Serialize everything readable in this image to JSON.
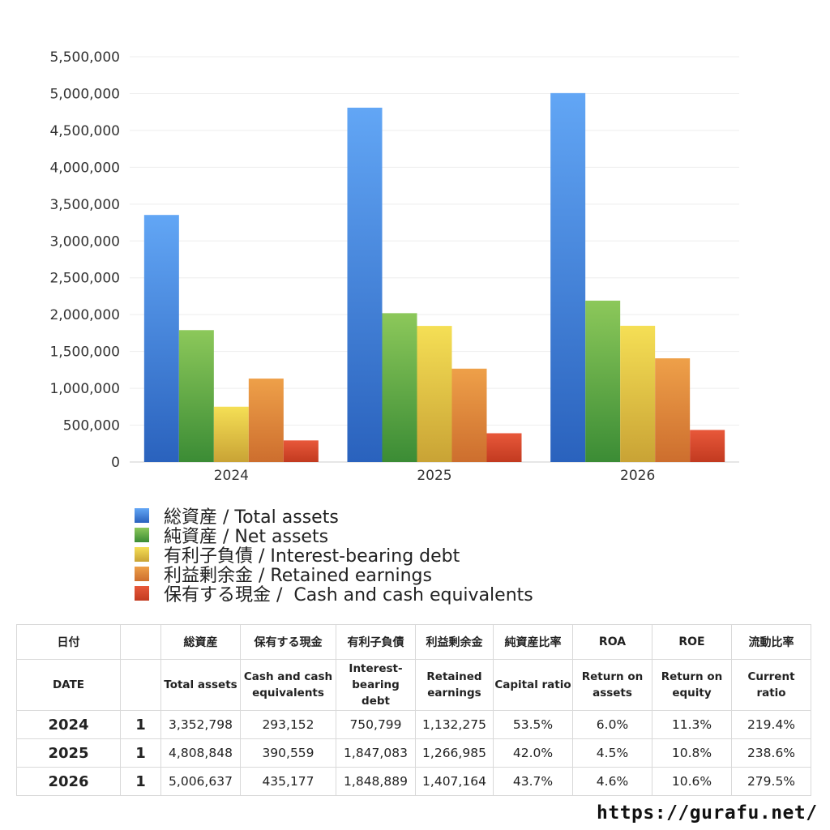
{
  "chart_data": {
    "type": "bar",
    "categories": [
      "2024",
      "2025",
      "2026"
    ],
    "ylim": [
      0,
      5500000
    ],
    "yticks": [
      0,
      500000,
      1000000,
      1500000,
      2000000,
      2500000,
      3000000,
      3500000,
      4000000,
      4500000,
      5000000,
      5500000
    ],
    "ytick_labels": [
      "0",
      "500,000",
      "1,000,000",
      "1,500,000",
      "2,000,000",
      "2,500,000",
      "3,000,000",
      "3,500,000",
      "4,000,000",
      "4,500,000",
      "5,000,000",
      "5,500,000"
    ],
    "grid": true,
    "legend_position": "bottom",
    "series": [
      {
        "name": "総資産 / Total assets",
        "values": [
          3352798,
          4808848,
          5006637
        ],
        "color_top": "#62a6f5",
        "color_bottom": "#2a62bd"
      },
      {
        "name": "純資産 / Net assets",
        "values": [
          1790000,
          2020000,
          2190000
        ],
        "color_top": "#8cc85a",
        "color_bottom": "#3b8c35"
      },
      {
        "name": "有利子負債 / Interest-bearing debt",
        "values": [
          750799,
          1847083,
          1848889
        ],
        "color_top": "#f5df55",
        "color_bottom": "#c9a335"
      },
      {
        "name": "利益剰余金 / Retained earnings",
        "values": [
          1132275,
          1266985,
          1407164
        ],
        "color_top": "#eea049",
        "color_bottom": "#cd6e2e"
      },
      {
        "name": "保有する現金 /  Cash and cash equivalents",
        "values": [
          293152,
          390559,
          435177
        ],
        "color_top": "#e8583a",
        "color_bottom": "#c23a20"
      }
    ]
  },
  "table": {
    "header_jp": [
      "日付",
      "",
      "総資産",
      "保有する現金",
      "有利子負債",
      "利益剰余金",
      "純資産比率",
      "ROA",
      "ROE",
      "流動比率"
    ],
    "header_en": [
      "DATE",
      "",
      "Total assets",
      "Cash and cash\nequivalents",
      "Interest-\nbearing\ndebt",
      "Retained\nearnings",
      "Capital ratio",
      "Return on\nassets",
      "Return on\nequity",
      "Current\nratio"
    ],
    "rows": [
      [
        "2024",
        "1",
        "3,352,798",
        "293,152",
        "750,799",
        "1,132,275",
        "53.5%",
        "6.0%",
        "11.3%",
        "219.4%"
      ],
      [
        "2025",
        "1",
        "4,808,848",
        "390,559",
        "1,847,083",
        "1,266,985",
        "42.0%",
        "4.5%",
        "10.8%",
        "238.6%"
      ],
      [
        "2026",
        "1",
        "5,006,637",
        "435,177",
        "1,848,889",
        "1,407,164",
        "43.7%",
        "4.6%",
        "10.6%",
        "279.5%"
      ]
    ]
  },
  "footer": {
    "url": "https://gurafu.net/"
  }
}
